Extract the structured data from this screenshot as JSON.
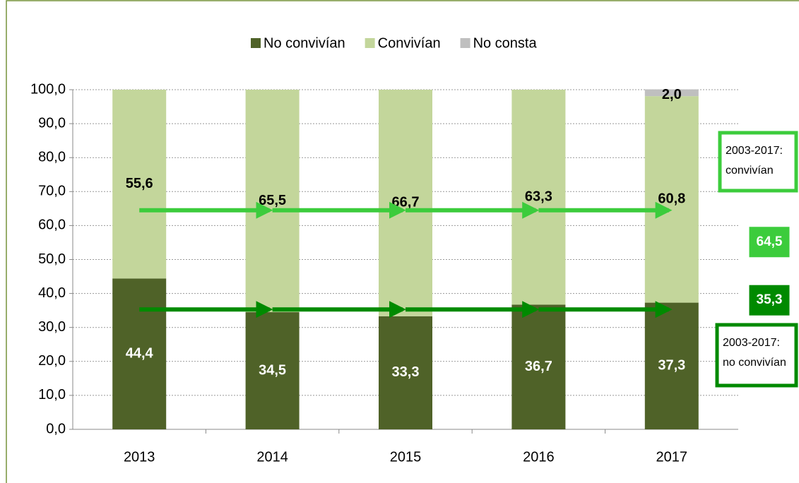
{
  "chart_data": {
    "type": "stacked_bar",
    "categories": [
      "2013",
      "2014",
      "2015",
      "2016",
      "2017"
    ],
    "series": [
      {
        "name": "No convivían",
        "color": "#4f6228",
        "label_color": "#ffffff",
        "values": [
          44.4,
          34.5,
          33.3,
          36.7,
          37.3
        ],
        "value_labels": [
          "44,4",
          "34,5",
          "33,3",
          "36,7",
          "37,3"
        ]
      },
      {
        "name": "Convivían",
        "color": "#c3d69b",
        "label_color": "#000000",
        "values": [
          55.6,
          65.5,
          66.7,
          63.3,
          60.8
        ],
        "value_labels": [
          "55,6",
          "65,5",
          "66,7",
          "63,3",
          "60,8"
        ]
      },
      {
        "name": "No consta",
        "color": "#bfbfbf",
        "label_color": "#000000",
        "values": [
          null,
          null,
          null,
          null,
          2.0
        ],
        "value_labels": [
          null,
          null,
          null,
          null,
          "2,0"
        ]
      }
    ],
    "ylim": [
      0,
      100
    ],
    "yticks": [
      {
        "value": 0,
        "label": "0,0"
      },
      {
        "value": 10,
        "label": "10,0"
      },
      {
        "value": 20,
        "label": "20,0"
      },
      {
        "value": 30,
        "label": "30,0"
      },
      {
        "value": 40,
        "label": "40,0"
      },
      {
        "value": 50,
        "label": "50,0"
      },
      {
        "value": 60,
        "label": "60,0"
      },
      {
        "value": 70,
        "label": "70,0"
      },
      {
        "value": 80,
        "label": "80,0"
      },
      {
        "value": 90,
        "label": "90,0"
      },
      {
        "value": 100,
        "label": "100,0"
      }
    ],
    "grid": true,
    "legend": "top",
    "reference_lines": [
      {
        "label": [
          "2003-2017:",
          "convivían"
        ],
        "value": 64.5,
        "value_label": "64,5",
        "color": "#3ccc3c"
      },
      {
        "label": [
          "2003-2017:",
          "no convivían"
        ],
        "value": 35.3,
        "value_label": "35,3",
        "color": "#008a00"
      }
    ]
  }
}
